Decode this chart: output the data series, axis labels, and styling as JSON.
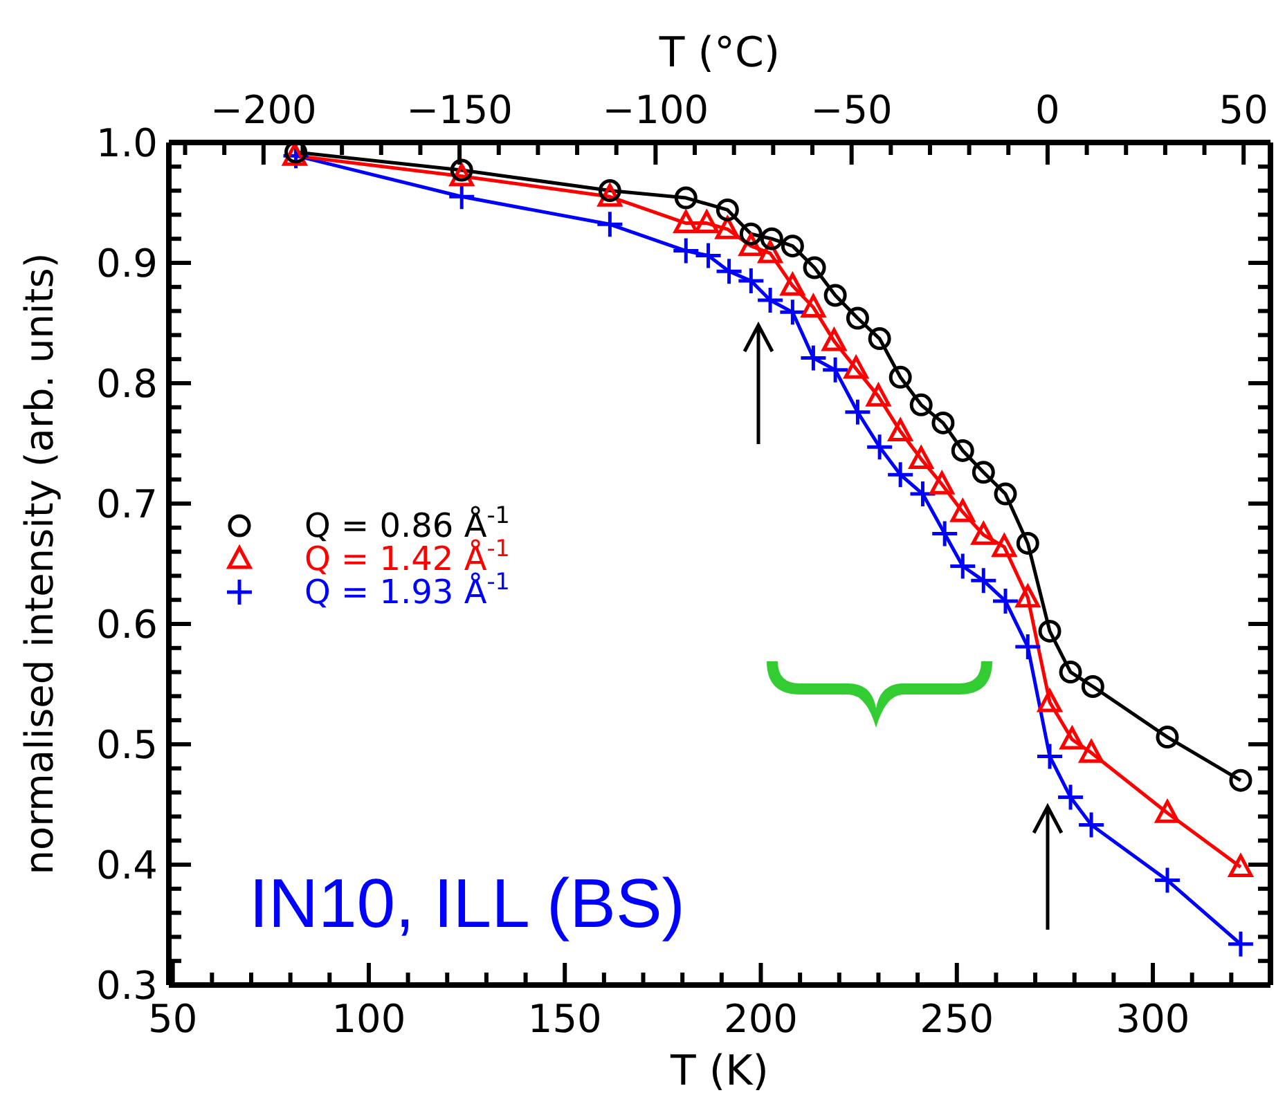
{
  "chart_data": {
    "type": "line",
    "xlabel": "T (K)",
    "x2label": "T (°C)",
    "ylabel": "normalised intensity (arb. units)",
    "annotations": [
      "IN10, ILL (BS)"
    ],
    "xlim": [
      49,
      330
    ],
    "xticks": [
      50,
      {
        "value": 60,
        "label": null
      },
      {
        "value": 70,
        "label": null
      },
      {
        "value": 80,
        "label": null
      },
      {
        "value": 90,
        "label": null
      },
      100,
      {
        "value": 110,
        "label": null
      },
      {
        "value": 120,
        "label": null
      },
      {
        "value": 130,
        "label": null
      },
      {
        "value": 140,
        "label": null
      },
      150,
      {
        "value": 160,
        "label": null
      },
      {
        "value": 170,
        "label": null
      },
      {
        "value": 180,
        "label": null
      },
      {
        "value": 190,
        "label": null
      },
      200,
      {
        "value": 210,
        "label": null
      },
      {
        "value": 220,
        "label": null
      },
      {
        "value": 230,
        "label": null
      },
      {
        "value": 240,
        "label": null
      },
      250,
      {
        "value": 260,
        "label": null
      },
      {
        "value": 270,
        "label": null
      },
      {
        "value": 280,
        "label": null
      },
      {
        "value": 290,
        "label": null
      },
      300,
      {
        "value": 310,
        "label": null
      },
      {
        "value": 320,
        "label": null
      }
    ],
    "x2lim": [
      -224.15,
      56.85
    ],
    "x2ticks": [
      {
        "value": -220,
        "label": null
      },
      {
        "value": -210,
        "label": null
      },
      -200,
      {
        "value": -190,
        "label": null
      },
      {
        "value": -180,
        "label": null
      },
      {
        "value": -170,
        "label": null
      },
      {
        "value": -160,
        "label": null
      },
      -150,
      {
        "value": -140,
        "label": null
      },
      {
        "value": -130,
        "label": null
      },
      {
        "value": -120,
        "label": null
      },
      {
        "value": -110,
        "label": null
      },
      -100,
      {
        "value": -90,
        "label": null
      },
      {
        "value": -80,
        "label": null
      },
      {
        "value": -70,
        "label": null
      },
      {
        "value": -60,
        "label": null
      },
      -50,
      {
        "value": -40,
        "label": null
      },
      {
        "value": -30,
        "label": null
      },
      {
        "value": -20,
        "label": null
      },
      {
        "value": -10,
        "label": null
      },
      0,
      {
        "value": 10,
        "label": null
      },
      {
        "value": 20,
        "label": null
      },
      {
        "value": 30,
        "label": null
      },
      {
        "value": 40,
        "label": null
      },
      50
    ],
    "ylim": [
      0.3,
      1.0
    ],
    "yticks": [
      0.3,
      {
        "value": 0.32,
        "label": null
      },
      {
        "value": 0.34,
        "label": null
      },
      {
        "value": 0.36,
        "label": null
      },
      {
        "value": 0.38,
        "label": null
      },
      0.4,
      {
        "value": 0.42,
        "label": null
      },
      {
        "value": 0.44,
        "label": null
      },
      {
        "value": 0.46,
        "label": null
      },
      {
        "value": 0.48,
        "label": null
      },
      0.5,
      {
        "value": 0.52,
        "label": null
      },
      {
        "value": 0.54,
        "label": null
      },
      {
        "value": 0.56,
        "label": null
      },
      {
        "value": 0.58,
        "label": null
      },
      0.6,
      {
        "value": 0.62,
        "label": null
      },
      {
        "value": 0.64,
        "label": null
      },
      {
        "value": 0.66,
        "label": null
      },
      {
        "value": 0.68,
        "label": null
      },
      0.7,
      {
        "value": 0.72,
        "label": null
      },
      {
        "value": 0.74,
        "label": null
      },
      {
        "value": 0.76,
        "label": null
      },
      {
        "value": 0.78,
        "label": null
      },
      0.8,
      {
        "value": 0.82,
        "label": null
      },
      {
        "value": 0.84,
        "label": null
      },
      {
        "value": 0.86,
        "label": null
      },
      {
        "value": 0.88,
        "label": null
      },
      0.9,
      {
        "value": 0.92,
        "label": null
      },
      {
        "value": 0.94,
        "label": null
      },
      {
        "value": 0.96,
        "label": null
      },
      {
        "value": 0.98,
        "label": null
      },
      {
        "value": 1.0,
        "label": "1.0"
      }
    ],
    "legend": "left",
    "line_style": "solid",
    "series": [
      {
        "name": "Q = 0.86 Å$^{-1}$",
        "color": "#000000",
        "marker": "circle",
        "x": [
          81.4,
          123.7,
          161.5,
          180.9,
          191.5,
          197.5,
          202.8,
          208.1,
          213.7,
          219.0,
          224.7,
          230.3,
          235.6,
          240.9,
          246.5,
          251.5,
          256.8,
          262.4,
          268.1,
          273.7,
          279.0,
          284.7,
          303.7,
          322.4
        ],
        "values": [
          0.992,
          0.977,
          0.96,
          0.954,
          0.944,
          0.924,
          0.92,
          0.914,
          0.896,
          0.873,
          0.854,
          0.837,
          0.805,
          0.782,
          0.767,
          0.744,
          0.726,
          0.708,
          0.667,
          0.594,
          0.56,
          0.548,
          0.506,
          0.47
        ]
      },
      {
        "name": "Q = 1.42 Å$^{-1}$",
        "color": "#ff0000",
        "marker": "triangle",
        "x": [
          81.1,
          123.7,
          161.5,
          180.9,
          186.2,
          191.5,
          197.5,
          202.4,
          208.1,
          213.4,
          218.7,
          224.3,
          230.0,
          235.6,
          240.9,
          246.2,
          251.5,
          256.8,
          262.1,
          268.1,
          273.7,
          279.4,
          284.3,
          303.7,
          322.4
        ],
        "values": [
          0.989,
          0.972,
          0.955,
          0.933,
          0.933,
          0.928,
          0.914,
          0.908,
          0.881,
          0.863,
          0.835,
          0.812,
          0.789,
          0.76,
          0.737,
          0.716,
          0.693,
          0.674,
          0.664,
          0.622,
          0.535,
          0.504,
          0.493,
          0.443,
          0.398
        ]
      },
      {
        "name": "Q = 1.93 Å$^{-1}$",
        "color": "#0000ff",
        "marker": "cross",
        "x": [
          81.4,
          123.7,
          161.5,
          180.9,
          186.6,
          191.9,
          197.5,
          202.4,
          208.1,
          213.4,
          219.0,
          224.7,
          230.3,
          235.6,
          241.3,
          246.9,
          251.5,
          256.8,
          262.4,
          268.1,
          273.7,
          279.0,
          284.3,
          303.7,
          322.4
        ],
        "values": [
          0.989,
          0.955,
          0.932,
          0.91,
          0.906,
          0.893,
          0.885,
          0.869,
          0.859,
          0.821,
          0.811,
          0.776,
          0.747,
          0.724,
          0.708,
          0.675,
          0.648,
          0.636,
          0.619,
          0.581,
          0.49,
          0.456,
          0.433,
          0.387,
          0.334
        ]
      }
    ]
  }
}
